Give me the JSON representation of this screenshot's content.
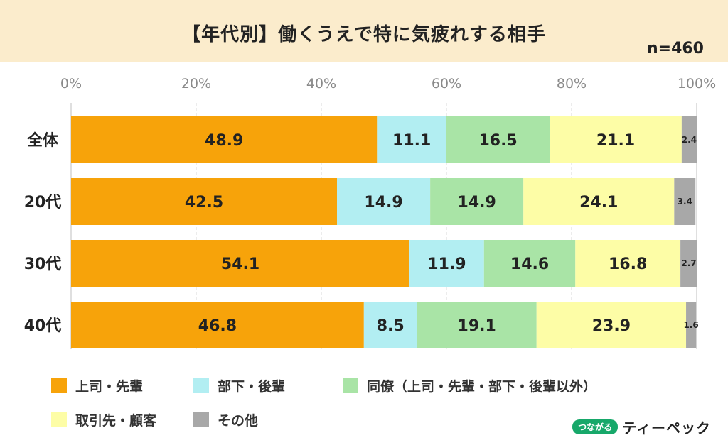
{
  "title": "【年代別】働くうえで特に気疲れする相手",
  "sample": "n=460",
  "logo": {
    "badge": "つながる",
    "name": "ティーペック"
  },
  "chart_data": {
    "type": "bar",
    "orientation": "horizontal",
    "stacked": true,
    "percent_stacked": true,
    "categories": [
      "全体",
      "20代",
      "30代",
      "40代"
    ],
    "series": [
      {
        "name": "上司・先輩",
        "color": "#f7a30a",
        "values": [
          48.9,
          42.5,
          54.1,
          46.8
        ]
      },
      {
        "name": "部下・後輩",
        "color": "#b2eef2",
        "values": [
          11.1,
          14.9,
          11.9,
          8.5
        ]
      },
      {
        "name": "同僚（上司・先輩・部下・後輩以外）",
        "color": "#a9e4a6",
        "values": [
          16.5,
          14.9,
          14.6,
          19.1
        ]
      },
      {
        "name": "取引先・顧客",
        "color": "#fdfda6",
        "values": [
          21.1,
          24.1,
          16.8,
          23.9
        ]
      },
      {
        "name": "その他",
        "color": "#a8a8a8",
        "values": [
          2.4,
          3.4,
          2.7,
          1.6
        ]
      }
    ],
    "xticks": [
      "0%",
      "20%",
      "40%",
      "60%",
      "80%",
      "100%"
    ],
    "xlim": [
      0,
      100
    ],
    "grid": true,
    "legend_position": "bottom"
  }
}
